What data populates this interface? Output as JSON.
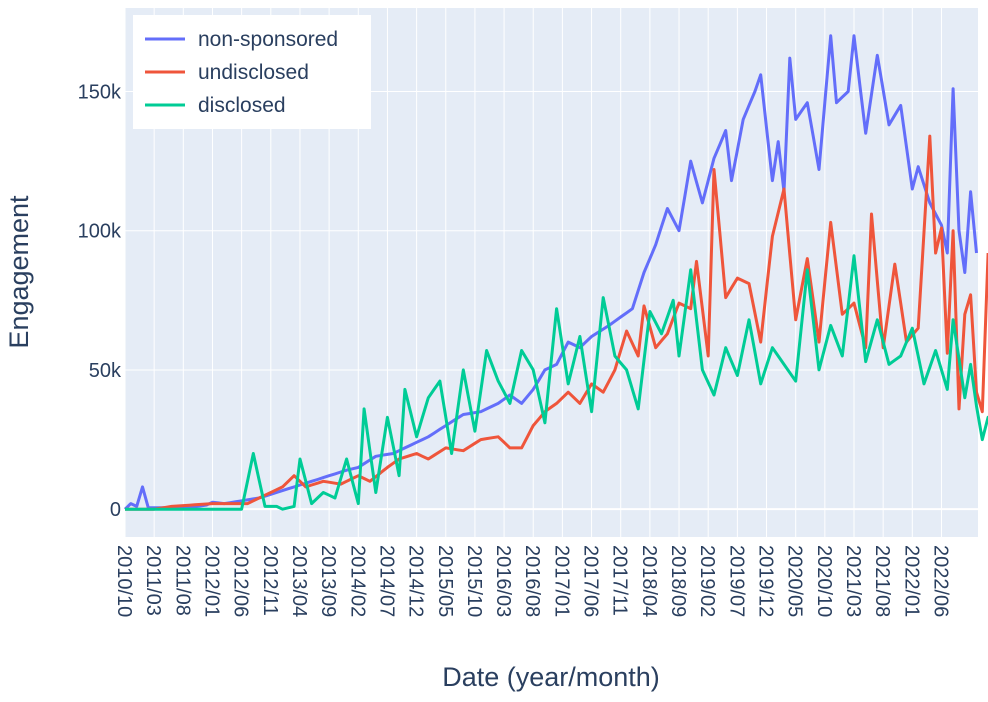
{
  "chart_data": {
    "type": "line",
    "xlabel": "Date (year/month)",
    "ylabel": "Engagement",
    "x_start": "2010/10",
    "x_end": "2022/10",
    "x_tick_labels": [
      "2010/10",
      "2011/03",
      "2011/08",
      "2012/01",
      "2012/06",
      "2012/11",
      "2013/04",
      "2013/09",
      "2014/02",
      "2014/07",
      "2014/12",
      "2015/05",
      "2015/10",
      "2016/03",
      "2016/08",
      "2017/01",
      "2017/06",
      "2017/11",
      "2018/04",
      "2018/09",
      "2019/02",
      "2019/07",
      "2019/12",
      "2020/05",
      "2020/10",
      "2021/03",
      "2021/08",
      "2022/01",
      "2022/06"
    ],
    "y_ticks": [
      0,
      50000,
      100000,
      150000
    ],
    "y_tick_labels": [
      "0",
      "50k",
      "100k",
      "150k"
    ],
    "ylim": [
      -10000,
      180000
    ],
    "grid": true,
    "legend_position": "top-left",
    "colors": {
      "background": "#e5ecf6",
      "grid": "#ffffff",
      "text": "#2a3f5f",
      "non_sponsored": "#636efa",
      "undisclosed": "#ef553b",
      "disclosed": "#00cc96"
    },
    "series": [
      {
        "name": "non-sponsored",
        "color": "#636efa",
        "keyframes": [
          [
            "2010/10",
            0
          ],
          [
            "2010/11",
            2000
          ],
          [
            "2010/12",
            1000
          ],
          [
            "2011/01",
            8000
          ],
          [
            "2011/02",
            500
          ],
          [
            "2011/03",
            500
          ],
          [
            "2011/06",
            500
          ],
          [
            "2011/09",
            500
          ],
          [
            "2011/12",
            1500
          ],
          [
            "2012/01",
            2500
          ],
          [
            "2012/03",
            2000
          ],
          [
            "2012/06",
            3000
          ],
          [
            "2012/09",
            4000
          ],
          [
            "2012/12",
            6000
          ],
          [
            "2013/03",
            8000
          ],
          [
            "2013/06",
            10000
          ],
          [
            "2013/09",
            12000
          ],
          [
            "2013/12",
            14000
          ],
          [
            "2014/02",
            15000
          ],
          [
            "2014/05",
            19000
          ],
          [
            "2014/08",
            20000
          ],
          [
            "2014/11",
            23000
          ],
          [
            "2015/02",
            26000
          ],
          [
            "2015/05",
            30000
          ],
          [
            "2015/08",
            34000
          ],
          [
            "2015/11",
            35000
          ],
          [
            "2016/02",
            38000
          ],
          [
            "2016/04",
            41000
          ],
          [
            "2016/06",
            38000
          ],
          [
            "2016/08",
            43000
          ],
          [
            "2016/10",
            50000
          ],
          [
            "2016/12",
            52000
          ],
          [
            "2017/02",
            60000
          ],
          [
            "2017/04",
            58000
          ],
          [
            "2017/06",
            62000
          ],
          [
            "2017/09",
            66000
          ],
          [
            "2017/11",
            69000
          ],
          [
            "2018/01",
            72000
          ],
          [
            "2018/03",
            85000
          ],
          [
            "2018/05",
            95000
          ],
          [
            "2018/07",
            108000
          ],
          [
            "2018/09",
            100000
          ],
          [
            "2018/11",
            125000
          ],
          [
            "2019/01",
            110000
          ],
          [
            "2019/03",
            126000
          ],
          [
            "2019/05",
            136000
          ],
          [
            "2019/06",
            118000
          ],
          [
            "2019/08",
            140000
          ],
          [
            "2019/10",
            150000
          ],
          [
            "2019/11",
            156000
          ],
          [
            "2020/01",
            118000
          ],
          [
            "2020/02",
            132000
          ],
          [
            "2020/03",
            114000
          ],
          [
            "2020/04",
            162000
          ],
          [
            "2020/05",
            140000
          ],
          [
            "2020/07",
            146000
          ],
          [
            "2020/09",
            122000
          ],
          [
            "2020/11",
            170000
          ],
          [
            "2020/12",
            146000
          ],
          [
            "2021/02",
            150000
          ],
          [
            "2021/03",
            170000
          ],
          [
            "2021/05",
            135000
          ],
          [
            "2021/07",
            163000
          ],
          [
            "2021/09",
            138000
          ],
          [
            "2021/11",
            145000
          ],
          [
            "2022/01",
            115000
          ],
          [
            "2022/02",
            123000
          ],
          [
            "2022/04",
            110000
          ],
          [
            "2022/06",
            102000
          ],
          [
            "2022/07",
            92000
          ],
          [
            "2022/08",
            151000
          ],
          [
            "2022/09",
            100000
          ],
          [
            "2022/10",
            85000
          ],
          [
            "2022/11",
            114000
          ],
          [
            "2022/12",
            92000
          ]
        ]
      },
      {
        "name": "undisclosed",
        "color": "#ef553b",
        "keyframes": [
          [
            "2010/10",
            0
          ],
          [
            "2011/03",
            0
          ],
          [
            "2011/06",
            1000
          ],
          [
            "2012/01",
            2000
          ],
          [
            "2012/04",
            2000
          ],
          [
            "2012/07",
            2000
          ],
          [
            "2012/10",
            5000
          ],
          [
            "2013/01",
            8000
          ],
          [
            "2013/03",
            12000
          ],
          [
            "2013/05",
            8000
          ],
          [
            "2013/08",
            10000
          ],
          [
            "2013/11",
            9000
          ],
          [
            "2014/02",
            12000
          ],
          [
            "2014/04",
            10000
          ],
          [
            "2014/07",
            15000
          ],
          [
            "2014/09",
            18000
          ],
          [
            "2014/12",
            20000
          ],
          [
            "2015/02",
            18000
          ],
          [
            "2015/05",
            22000
          ],
          [
            "2015/08",
            21000
          ],
          [
            "2015/11",
            25000
          ],
          [
            "2016/02",
            26000
          ],
          [
            "2016/04",
            22000
          ],
          [
            "2016/06",
            22000
          ],
          [
            "2016/08",
            30000
          ],
          [
            "2016/10",
            35000
          ],
          [
            "2016/12",
            38000
          ],
          [
            "2017/02",
            42000
          ],
          [
            "2017/04",
            38000
          ],
          [
            "2017/06",
            45000
          ],
          [
            "2017/08",
            42000
          ],
          [
            "2017/10",
            50000
          ],
          [
            "2017/12",
            64000
          ],
          [
            "2018/02",
            55000
          ],
          [
            "2018/03",
            73000
          ],
          [
            "2018/05",
            58000
          ],
          [
            "2018/07",
            63000
          ],
          [
            "2018/09",
            74000
          ],
          [
            "2018/11",
            72000
          ],
          [
            "2018/12",
            89000
          ],
          [
            "2019/02",
            55000
          ],
          [
            "2019/03",
            122000
          ],
          [
            "2019/05",
            76000
          ],
          [
            "2019/07",
            83000
          ],
          [
            "2019/09",
            81000
          ],
          [
            "2019/11",
            60000
          ],
          [
            "2020/01",
            98000
          ],
          [
            "2020/03",
            115000
          ],
          [
            "2020/05",
            68000
          ],
          [
            "2020/07",
            90000
          ],
          [
            "2020/09",
            60000
          ],
          [
            "2020/11",
            103000
          ],
          [
            "2021/01",
            70000
          ],
          [
            "2021/03",
            74000
          ],
          [
            "2021/05",
            58000
          ],
          [
            "2021/06",
            106000
          ],
          [
            "2021/08",
            58000
          ],
          [
            "2021/10",
            88000
          ],
          [
            "2021/12",
            60000
          ],
          [
            "2022/02",
            65000
          ],
          [
            "2022/04",
            134000
          ],
          [
            "2022/05",
            92000
          ],
          [
            "2022/06",
            101000
          ],
          [
            "2022/07",
            56000
          ],
          [
            "2022/08",
            100000
          ],
          [
            "2022/09",
            36000
          ],
          [
            "2022/10",
            70000
          ],
          [
            "2022/11",
            77000
          ],
          [
            "2022/12",
            42000
          ],
          [
            "2023/01",
            35000
          ],
          [
            "2023/02",
            92000
          ]
        ]
      },
      {
        "name": "disclosed",
        "color": "#00cc96",
        "keyframes": [
          [
            "2010/10",
            0
          ],
          [
            "2012/06",
            0
          ],
          [
            "2012/08",
            20000
          ],
          [
            "2012/10",
            1000
          ],
          [
            "2012/12",
            1000
          ],
          [
            "2013/01",
            0
          ],
          [
            "2013/03",
            1000
          ],
          [
            "2013/04",
            18000
          ],
          [
            "2013/06",
            2000
          ],
          [
            "2013/08",
            6000
          ],
          [
            "2013/10",
            4000
          ],
          [
            "2013/12",
            18000
          ],
          [
            "2014/02",
            2000
          ],
          [
            "2014/03",
            36000
          ],
          [
            "2014/05",
            6000
          ],
          [
            "2014/07",
            33000
          ],
          [
            "2014/09",
            12000
          ],
          [
            "2014/10",
            43000
          ],
          [
            "2014/12",
            26000
          ],
          [
            "2015/02",
            40000
          ],
          [
            "2015/04",
            46000
          ],
          [
            "2015/06",
            20000
          ],
          [
            "2015/08",
            50000
          ],
          [
            "2015/10",
            28000
          ],
          [
            "2015/12",
            57000
          ],
          [
            "2016/02",
            46000
          ],
          [
            "2016/04",
            38000
          ],
          [
            "2016/06",
            57000
          ],
          [
            "2016/08",
            50000
          ],
          [
            "2016/10",
            31000
          ],
          [
            "2016/12",
            72000
          ],
          [
            "2017/02",
            45000
          ],
          [
            "2017/04",
            62000
          ],
          [
            "2017/06",
            35000
          ],
          [
            "2017/08",
            76000
          ],
          [
            "2017/10",
            55000
          ],
          [
            "2017/12",
            50000
          ],
          [
            "2018/02",
            36000
          ],
          [
            "2018/04",
            71000
          ],
          [
            "2018/06",
            63000
          ],
          [
            "2018/08",
            75000
          ],
          [
            "2018/09",
            55000
          ],
          [
            "2018/11",
            86000
          ],
          [
            "2019/01",
            50000
          ],
          [
            "2019/03",
            41000
          ],
          [
            "2019/05",
            58000
          ],
          [
            "2019/07",
            48000
          ],
          [
            "2019/09",
            68000
          ],
          [
            "2019/11",
            45000
          ],
          [
            "2020/01",
            58000
          ],
          [
            "2020/03",
            52000
          ],
          [
            "2020/05",
            46000
          ],
          [
            "2020/07",
            86000
          ],
          [
            "2020/09",
            50000
          ],
          [
            "2020/11",
            66000
          ],
          [
            "2021/01",
            55000
          ],
          [
            "2021/03",
            91000
          ],
          [
            "2021/05",
            53000
          ],
          [
            "2021/07",
            68000
          ],
          [
            "2021/09",
            52000
          ],
          [
            "2021/11",
            55000
          ],
          [
            "2022/01",
            65000
          ],
          [
            "2022/03",
            45000
          ],
          [
            "2022/05",
            57000
          ],
          [
            "2022/07",
            43000
          ],
          [
            "2022/08",
            68000
          ],
          [
            "2022/10",
            40000
          ],
          [
            "2022/11",
            52000
          ],
          [
            "2022/12",
            37000
          ],
          [
            "2023/01",
            25000
          ],
          [
            "2023/02",
            33000
          ],
          [
            "2023/03",
            31000
          ]
        ]
      }
    ]
  }
}
